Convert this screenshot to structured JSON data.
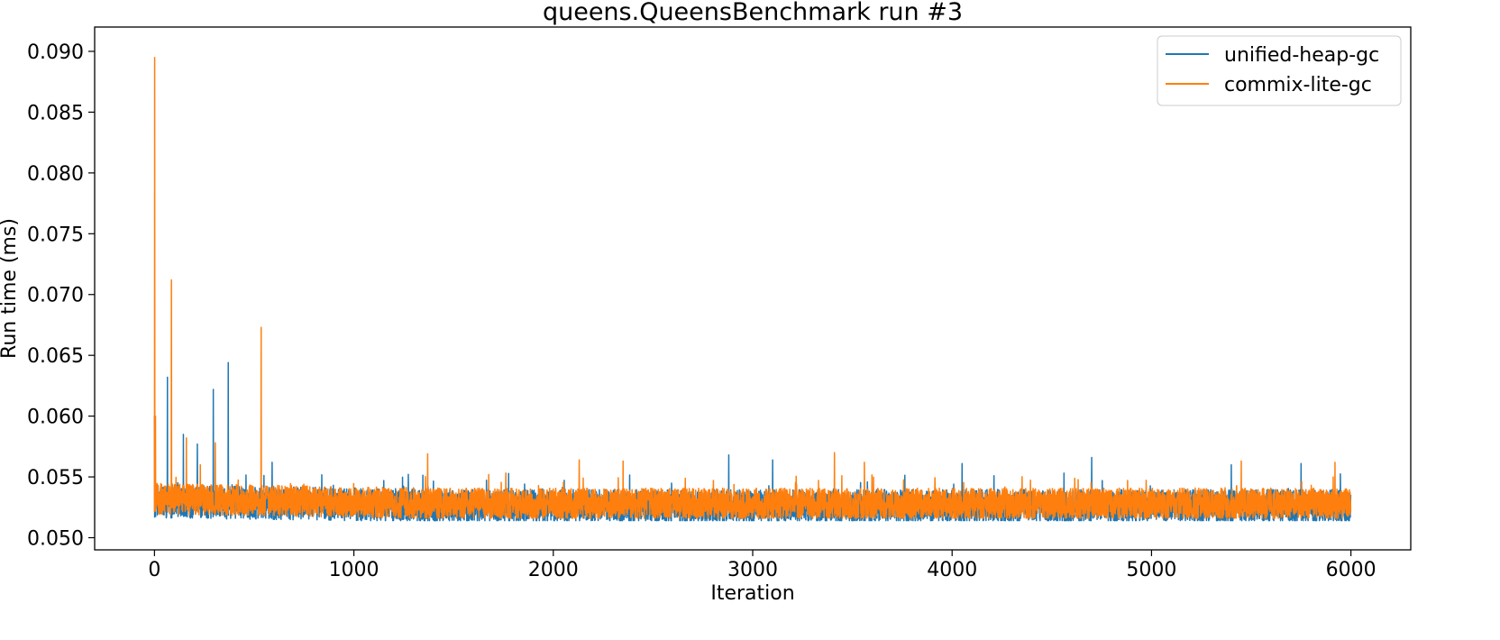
{
  "chart_data": {
    "type": "line",
    "title": "queens.QueensBenchmark run #3",
    "xlabel": "Iteration",
    "ylabel": "Run time (ms)",
    "xlim": [
      -300,
      6300
    ],
    "ylim": [
      0.049,
      0.092
    ],
    "xticks": [
      0,
      1000,
      2000,
      3000,
      4000,
      5000,
      6000
    ],
    "xtick_labels": [
      "0",
      "1000",
      "2000",
      "3000",
      "4000",
      "5000",
      "6000"
    ],
    "yticks": [
      0.05,
      0.055,
      0.06,
      0.065,
      0.07,
      0.075,
      0.08,
      0.085,
      0.09
    ],
    "ytick_labels": [
      "0.050",
      "0.055",
      "0.060",
      "0.065",
      "0.070",
      "0.075",
      "0.080",
      "0.085",
      "0.090"
    ],
    "grid": false,
    "legend_position": "top-right",
    "n_points": 6000,
    "series": [
      {
        "name": "unified-heap-gc",
        "color": "#1f77b4",
        "baseline_early": 0.053,
        "baseline_late": 0.0526,
        "noise_low": 0.0514,
        "noise_high": 0.0546,
        "spikes": [
          {
            "x": 0,
            "y": 0.06
          },
          {
            "x": 65,
            "y": 0.0632
          },
          {
            "x": 145,
            "y": 0.0585
          },
          {
            "x": 215,
            "y": 0.0577
          },
          {
            "x": 295,
            "y": 0.0622
          },
          {
            "x": 370,
            "y": 0.0644
          },
          {
            "x": 590,
            "y": 0.0562
          },
          {
            "x": 2880,
            "y": 0.0568
          },
          {
            "x": 3100,
            "y": 0.0564
          },
          {
            "x": 4050,
            "y": 0.0561
          },
          {
            "x": 4700,
            "y": 0.0566
          },
          {
            "x": 5400,
            "y": 0.056
          },
          {
            "x": 5750,
            "y": 0.0561
          }
        ]
      },
      {
        "name": "commix-lite-gc",
        "color": "#ff7f0e",
        "baseline_early": 0.0532,
        "baseline_late": 0.0528,
        "noise_low": 0.0516,
        "noise_high": 0.0546,
        "spikes": [
          {
            "x": 1,
            "y": 0.0895
          },
          {
            "x": 5,
            "y": 0.06
          },
          {
            "x": 85,
            "y": 0.0712
          },
          {
            "x": 160,
            "y": 0.0582
          },
          {
            "x": 230,
            "y": 0.056
          },
          {
            "x": 305,
            "y": 0.0578
          },
          {
            "x": 535,
            "y": 0.0673
          },
          {
            "x": 1370,
            "y": 0.0569
          },
          {
            "x": 2130,
            "y": 0.0564
          },
          {
            "x": 2350,
            "y": 0.0563
          },
          {
            "x": 3410,
            "y": 0.057
          },
          {
            "x": 3560,
            "y": 0.0562
          },
          {
            "x": 5450,
            "y": 0.0563
          },
          {
            "x": 5920,
            "y": 0.0562
          }
        ]
      }
    ]
  }
}
